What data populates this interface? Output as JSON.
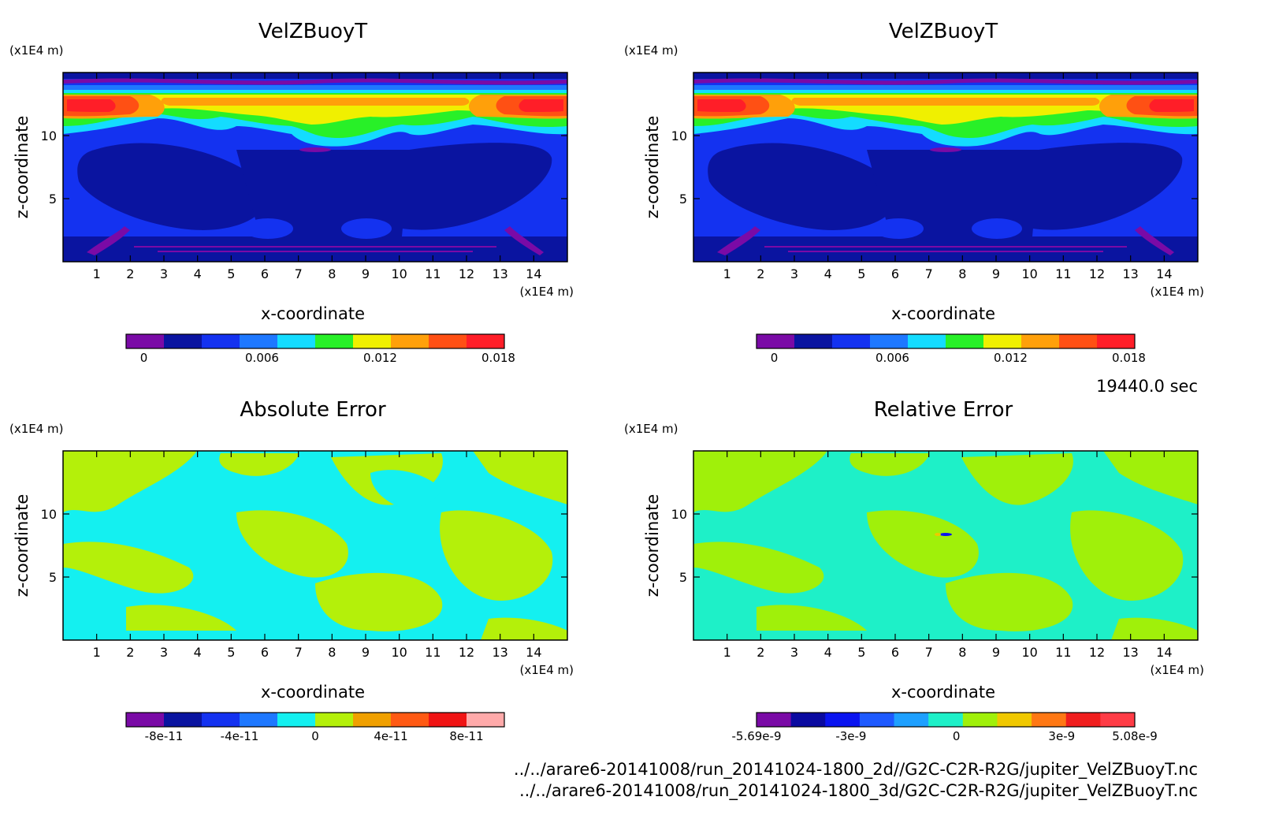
{
  "time_label": "19440.0 sec",
  "footer": {
    "file_2d": "../../arare6-20141008/run_20141024-1800_2d//G2C-C2R-R2G/jupiter_VelZBuoyT.nc",
    "file_3d": "../../arare6-20141008/run_20141024-1800_3d/G2C-C2R-R2G/jupiter_VelZBuoyT.nc"
  },
  "chart_data": [
    {
      "type": "heatmap",
      "title": "VelZBuoyT",
      "xlabel": "x-coordinate",
      "ylabel": "z-coordinate",
      "x_unit": "(x1E4 m)",
      "y_unit": "(x1E4 m)",
      "xlim": [
        0,
        15
      ],
      "ylim": [
        0,
        15
      ],
      "x_ticks": [
        1,
        2,
        3,
        4,
        5,
        6,
        7,
        8,
        9,
        10,
        11,
        12,
        13,
        14
      ],
      "y_ticks": [
        5,
        10
      ],
      "colorbar": {
        "colors": [
          "#7a0aa6",
          "#0a14a0",
          "#1432f0",
          "#1e78ff",
          "#14dcff",
          "#28f028",
          "#f0f000",
          "#ffa00a",
          "#ff5014",
          "#ff1e28"
        ],
        "tick_labels": [
          "0",
          "0.006",
          "0.012",
          "0.018"
        ],
        "tick_values": [
          0,
          0.006,
          0.012,
          0.018
        ],
        "range": [
          -0.0009,
          0.0183
        ]
      }
    },
    {
      "type": "heatmap",
      "title": "VelZBuoyT",
      "xlabel": "x-coordinate",
      "ylabel": "z-coordinate",
      "x_unit": "(x1E4 m)",
      "y_unit": "(x1E4 m)",
      "xlim": [
        0,
        15
      ],
      "ylim": [
        0,
        15
      ],
      "x_ticks": [
        1,
        2,
        3,
        4,
        5,
        6,
        7,
        8,
        9,
        10,
        11,
        12,
        13,
        14
      ],
      "y_ticks": [
        5,
        10
      ],
      "colorbar": {
        "colors": [
          "#7a0aa6",
          "#0a14a0",
          "#1432f0",
          "#1e78ff",
          "#14dcff",
          "#28f028",
          "#f0f000",
          "#ffa00a",
          "#ff5014",
          "#ff1e28"
        ],
        "tick_labels": [
          "0",
          "0.006",
          "0.012",
          "0.018"
        ],
        "tick_values": [
          0,
          0.006,
          0.012,
          0.018
        ],
        "range": [
          -0.0009,
          0.0183
        ]
      }
    },
    {
      "type": "heatmap",
      "title": "Absolute Error",
      "xlabel": "x-coordinate",
      "ylabel": "z-coordinate",
      "x_unit": "(x1E4 m)",
      "y_unit": "(x1E4 m)",
      "xlim": [
        0,
        15
      ],
      "ylim": [
        0,
        15
      ],
      "x_ticks": [
        1,
        2,
        3,
        4,
        5,
        6,
        7,
        8,
        9,
        10,
        11,
        12,
        13,
        14
      ],
      "y_ticks": [
        5,
        10
      ],
      "colorbar": {
        "colors": [
          "#7a0aa6",
          "#0a14a0",
          "#1432f0",
          "#1e78ff",
          "#14f0f0",
          "#b4f00a",
          "#f0a000",
          "#ff5a14",
          "#f01414",
          "#ffaaaa"
        ],
        "tick_labels": [
          "-8e-11",
          "-4e-11",
          "0",
          "4e-11",
          "8e-11"
        ],
        "tick_values": [
          -8e-11,
          -4e-11,
          0,
          4e-11,
          8e-11
        ],
        "range": [
          -1e-10,
          1e-10
        ]
      }
    },
    {
      "type": "heatmap",
      "title": "Relative Error",
      "xlabel": "x-coordinate",
      "ylabel": "z-coordinate",
      "x_unit": "(x1E4 m)",
      "y_unit": "(x1E4 m)",
      "xlim": [
        0,
        15
      ],
      "ylim": [
        0,
        15
      ],
      "x_ticks": [
        1,
        2,
        3,
        4,
        5,
        6,
        7,
        8,
        9,
        10,
        11,
        12,
        13,
        14
      ],
      "y_ticks": [
        5,
        10
      ],
      "colorbar": {
        "colors": [
          "#7a0aa6",
          "#0a0aa0",
          "#0a14f0",
          "#1e5aff",
          "#1ea0ff",
          "#1ef0c8",
          "#a0f00a",
          "#f0c800",
          "#ff7814",
          "#f01e1e",
          "#ff3c46"
        ],
        "tick_labels": [
          "-5.69e-9",
          "-3e-9",
          "0",
          "3e-9",
          "5.08e-9"
        ],
        "tick_values": [
          -5.69e-09,
          -3e-09,
          0,
          3e-09,
          5.08e-09
        ],
        "range": [
          -5.69e-09,
          5.08e-09
        ]
      }
    }
  ]
}
